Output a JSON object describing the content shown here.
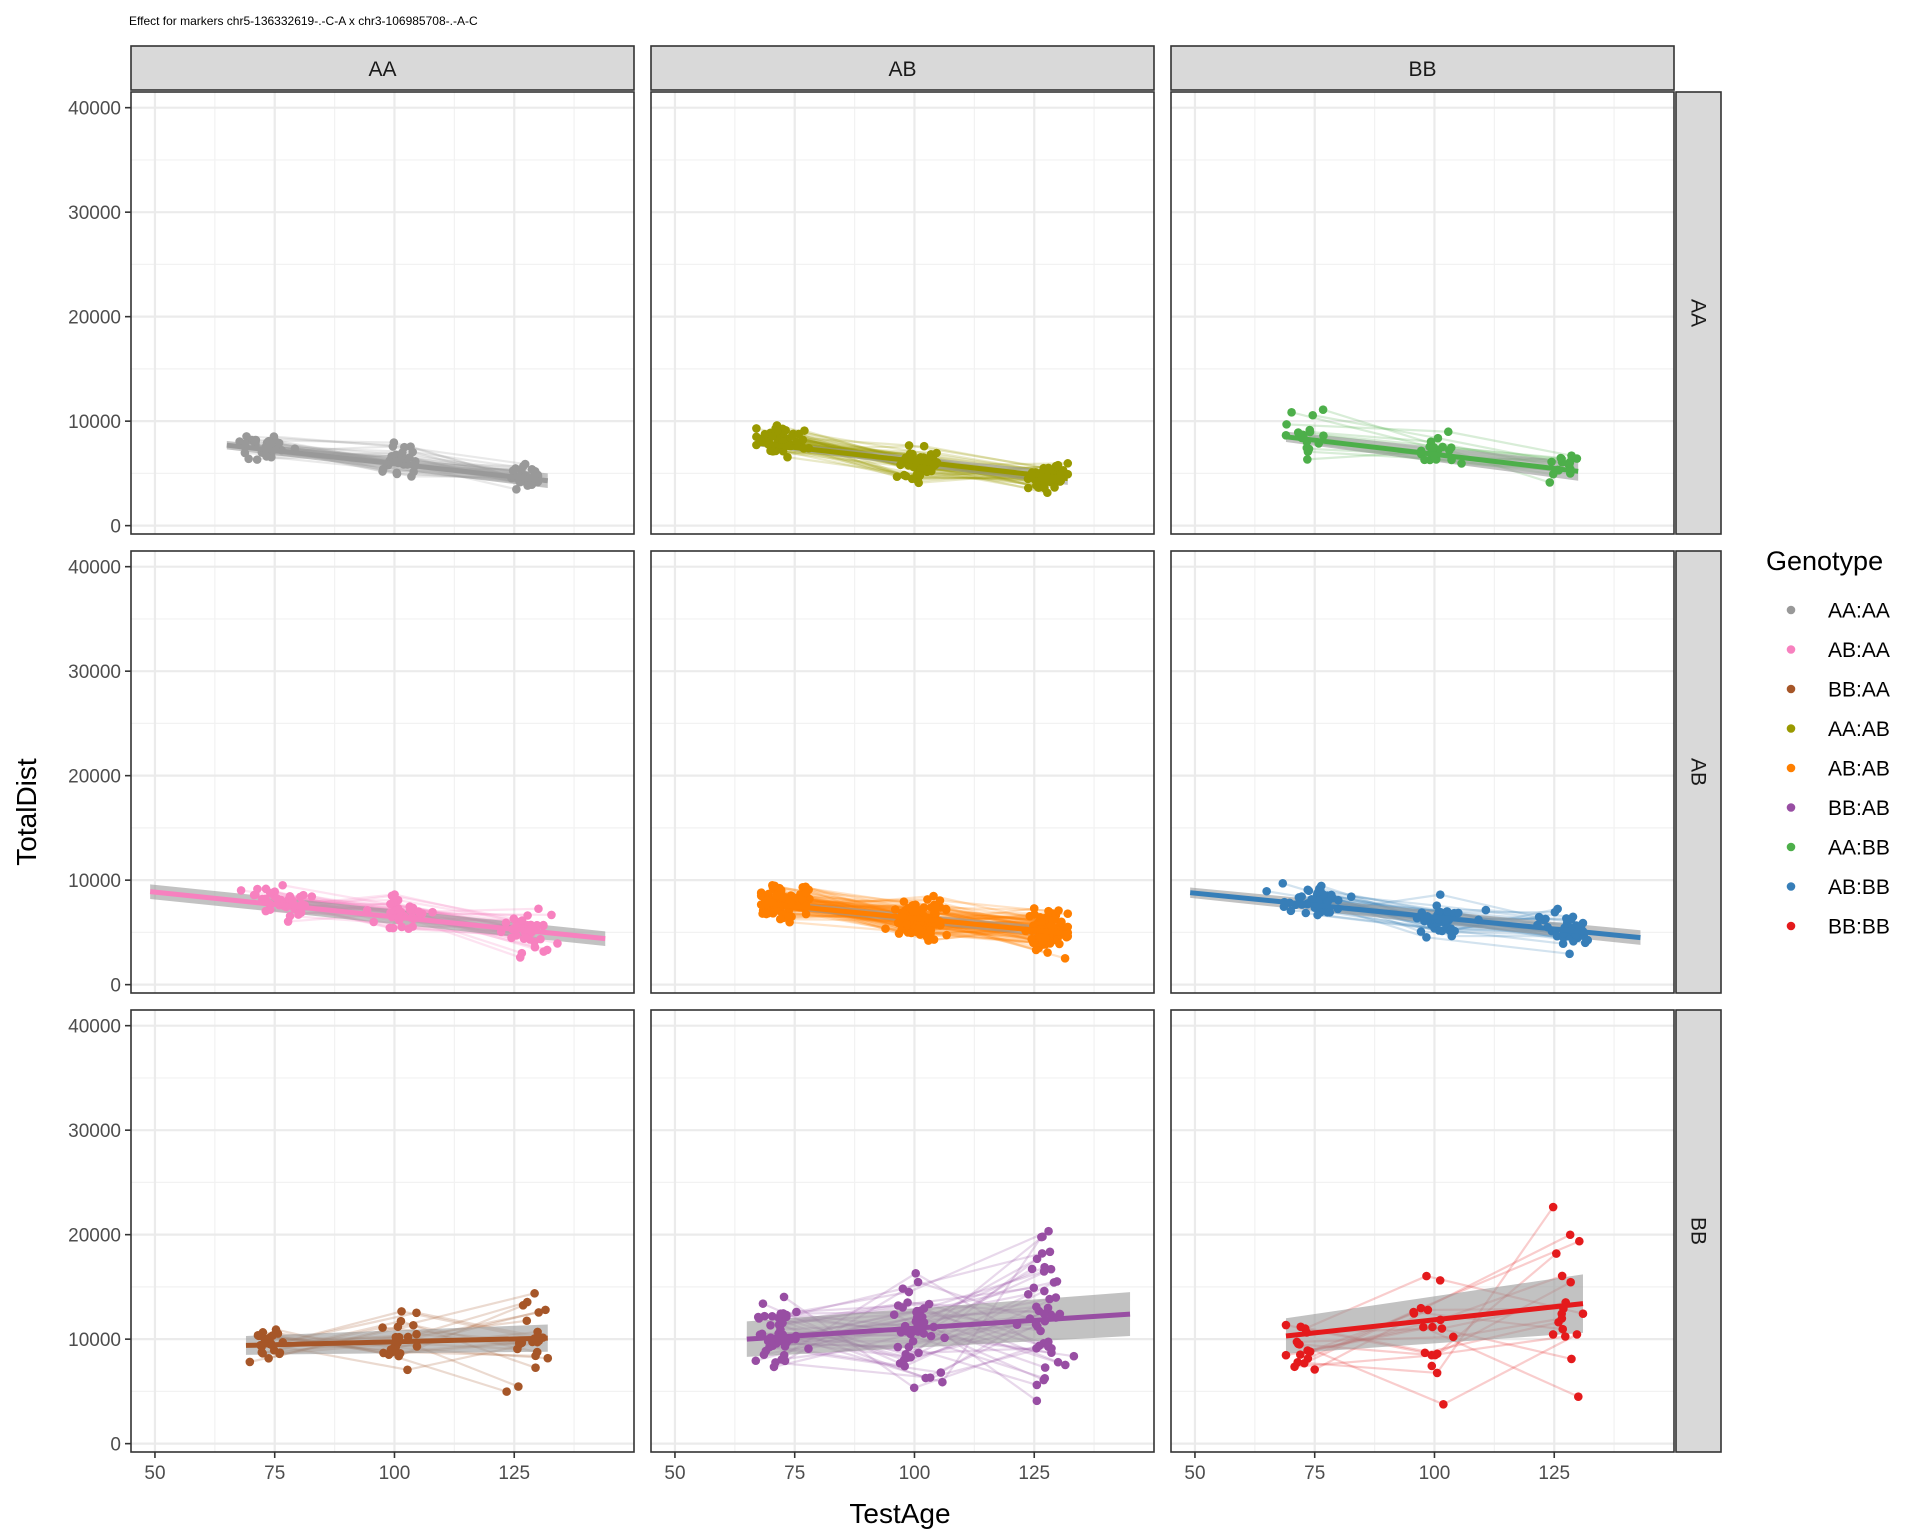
{
  "chart_data": {
    "type": "scatter",
    "title": "Effect for markers chr5-136332619-.-C-A x chr3-106985708-.-A-C",
    "xlabel": "TestAge",
    "ylabel": "TotalDist",
    "xlim": [
      45,
      150
    ],
    "ylim": [
      -800,
      41500
    ],
    "x_ticks": [
      50,
      75,
      100,
      125
    ],
    "x_tick_labels": [
      "50",
      "75",
      "100",
      "125"
    ],
    "y_ticks": [
      0,
      10000,
      20000,
      30000,
      40000
    ],
    "y_tick_labels": [
      "0",
      "10000",
      "20000",
      "30000",
      "40000"
    ],
    "col_strips": [
      "AA",
      "AB",
      "BB"
    ],
    "row_strips": [
      "AA",
      "AB",
      "BB"
    ],
    "grid": true,
    "legend": {
      "title": "Genotype",
      "position": "right",
      "entries": [
        "AA:AA",
        "AB:AA",
        "BB:AA",
        "AA:AB",
        "AB:AB",
        "BB:AB",
        "AA:BB",
        "AB:BB",
        "BB:BB"
      ]
    },
    "panels": [
      {
        "row": 0,
        "col": 0,
        "genotype": "AA:AA",
        "color": "#999999",
        "x_range": [
          65,
          132
        ],
        "fit": [
          [
            65,
            7700
          ],
          [
            132,
            4300
          ]
        ],
        "band": [
          400,
          700
        ],
        "clusters": [
          {
            "x": 73,
            "y": 7600,
            "n": 32,
            "sx": 3.5,
            "sy": 900
          },
          {
            "x": 102,
            "y": 6200,
            "n": 30,
            "sx": 3,
            "sy": 1300
          },
          {
            "x": 128,
            "y": 4400,
            "n": 30,
            "sx": 2.5,
            "sy": 1100
          }
        ]
      },
      {
        "row": 0,
        "col": 1,
        "genotype": "AA:AB",
        "color": "#999900",
        "x_range": [
          67,
          132
        ],
        "fit": [
          [
            67,
            7900
          ],
          [
            132,
            4500
          ]
        ],
        "band": [
          300,
          600
        ],
        "clusters": [
          {
            "x": 72,
            "y": 8000,
            "n": 55,
            "sx": 3.5,
            "sy": 1200
          },
          {
            "x": 101,
            "y": 5800,
            "n": 55,
            "sx": 3,
            "sy": 1300
          },
          {
            "x": 128,
            "y": 4600,
            "n": 55,
            "sx": 2.5,
            "sy": 1200
          }
        ]
      },
      {
        "row": 0,
        "col": 2,
        "genotype": "AA:BB",
        "color": "#4DAF4A",
        "x_range": [
          69,
          130
        ],
        "fit": [
          [
            69,
            8500
          ],
          [
            130,
            5200
          ]
        ],
        "band": [
          500,
          900
        ],
        "clusters": [
          {
            "x": 73,
            "y": 8800,
            "n": 18,
            "sx": 3,
            "sy": 1800
          },
          {
            "x": 101,
            "y": 7000,
            "n": 18,
            "sx": 2.5,
            "sy": 1600
          },
          {
            "x": 127,
            "y": 6000,
            "n": 16,
            "sx": 2.5,
            "sy": 1800
          }
        ]
      },
      {
        "row": 1,
        "col": 0,
        "genotype": "AB:AA",
        "color": "#F781BF",
        "x_range": [
          49,
          144
        ],
        "fit": [
          [
            49,
            8900
          ],
          [
            144,
            4400
          ]
        ],
        "band": [
          700,
          700
        ],
        "clusters": [
          {
            "x": 76,
            "y": 7900,
            "n": 38,
            "sx": 4.5,
            "sy": 1500
          },
          {
            "x": 102,
            "y": 6600,
            "n": 38,
            "sx": 4,
            "sy": 1500
          },
          {
            "x": 128,
            "y": 5200,
            "n": 38,
            "sx": 4,
            "sy": 1700
          }
        ]
      },
      {
        "row": 1,
        "col": 1,
        "genotype": "AB:AB",
        "color": "#FF7F00",
        "x_range": [
          68,
          132
        ],
        "fit": [
          [
            68,
            7800
          ],
          [
            132,
            4900
          ]
        ],
        "band": [
          350,
          500
        ],
        "clusters": [
          {
            "x": 73,
            "y": 8000,
            "n": 95,
            "sx": 4,
            "sy": 1500
          },
          {
            "x": 101,
            "y": 6200,
            "n": 95,
            "sx": 3.5,
            "sy": 1600
          },
          {
            "x": 128,
            "y": 5200,
            "n": 95,
            "sx": 3,
            "sy": 1700
          }
        ]
      },
      {
        "row": 1,
        "col": 2,
        "genotype": "AB:BB",
        "color": "#377EB8",
        "x_range": [
          49,
          143
        ],
        "fit": [
          [
            49,
            8800
          ],
          [
            143,
            4500
          ]
        ],
        "band": [
          500,
          700
        ],
        "clusters": [
          {
            "x": 75,
            "y": 8200,
            "n": 42,
            "sx": 4.5,
            "sy": 1500
          },
          {
            "x": 101,
            "y": 6200,
            "n": 42,
            "sx": 4,
            "sy": 1500
          },
          {
            "x": 128,
            "y": 5100,
            "n": 42,
            "sx": 4,
            "sy": 1600
          }
        ]
      },
      {
        "row": 2,
        "col": 0,
        "genotype": "BB:AA",
        "color": "#A65628",
        "x_range": [
          69,
          132
        ],
        "fit": [
          [
            69,
            9400
          ],
          [
            132,
            10100
          ]
        ],
        "band": [
          900,
          1300
        ],
        "clusters": [
          {
            "x": 73,
            "y": 9500,
            "n": 22,
            "sx": 3,
            "sy": 1600
          },
          {
            "x": 101,
            "y": 9700,
            "n": 22,
            "sx": 3,
            "sy": 2700
          },
          {
            "x": 128,
            "y": 9500,
            "n": 22,
            "sx": 3,
            "sy": 3200
          }
        ]
      },
      {
        "row": 2,
        "col": 1,
        "genotype": "BB:AB",
        "color": "#984EA3",
        "x_range": [
          65,
          145
        ],
        "fit": [
          [
            65,
            10000
          ],
          [
            145,
            12400
          ]
        ],
        "band": [
          1700,
          2100
        ],
        "clusters": [
          {
            "x": 71,
            "y": 10500,
            "n": 45,
            "sx": 3.5,
            "sy": 3000
          },
          {
            "x": 100,
            "y": 10500,
            "n": 45,
            "sx": 3.5,
            "sy": 5000
          },
          {
            "x": 127,
            "y": 11000,
            "n": 45,
            "sx": 3.5,
            "sy": 6500
          }
        ]
      },
      {
        "row": 2,
        "col": 2,
        "genotype": "BB:BB",
        "color": "#E41A1C",
        "x_range": [
          69,
          131
        ],
        "fit": [
          [
            69,
            10300
          ],
          [
            131,
            13400
          ]
        ],
        "band": [
          1700,
          2800
        ],
        "clusters": [
          {
            "x": 73,
            "y": 9800,
            "n": 16,
            "sx": 3,
            "sy": 2800
          },
          {
            "x": 100,
            "y": 10000,
            "n": 18,
            "sx": 4,
            "sy": 5500
          },
          {
            "x": 128,
            "y": 13000,
            "n": 18,
            "sx": 2.5,
            "sy": 9000
          }
        ]
      }
    ]
  }
}
